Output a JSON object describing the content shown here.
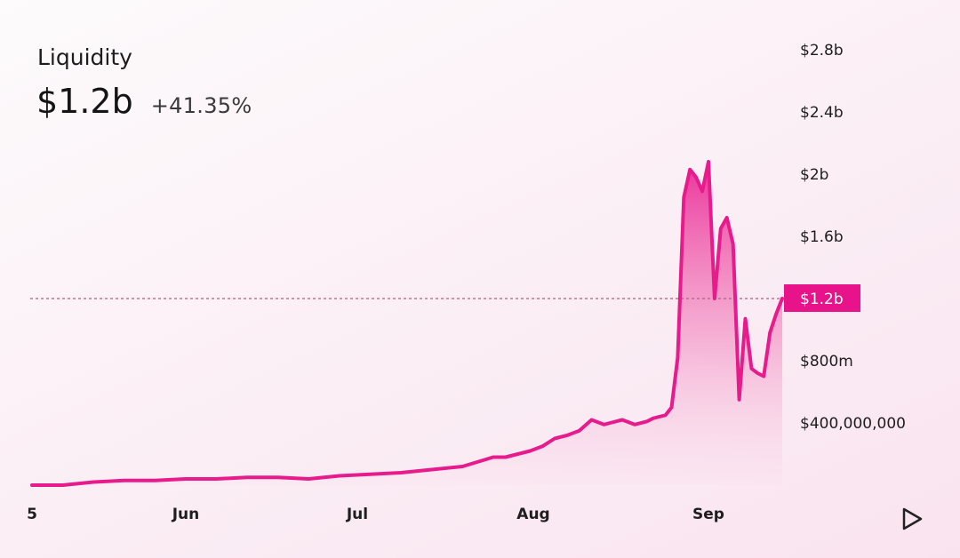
{
  "header": {
    "title": "Liquidity",
    "value": "$1.2b",
    "change": "+41.35%"
  },
  "colors": {
    "accent": "#e8128a",
    "line": "#e81b8c",
    "guide": "#b0607f",
    "text": "#1e1e1e"
  },
  "controls": {
    "play_icon": "play-icon"
  },
  "chart_data": {
    "type": "area",
    "title": "Liquidity",
    "xlabel": "",
    "ylabel": "",
    "ylim": [
      0,
      2.8
    ],
    "y_ticks": [
      {
        "value": 2.8,
        "label": "$2.8b"
      },
      {
        "value": 2.4,
        "label": "$2.4b"
      },
      {
        "value": 2.0,
        "label": "$2b"
      },
      {
        "value": 1.6,
        "label": "$1.6b"
      },
      {
        "value": 0.8,
        "label": "$800m"
      },
      {
        "value": 0.4,
        "label": "$400,000,000"
      }
    ],
    "x_ticks": [
      "5",
      "Jun",
      "Jul",
      "Aug",
      "Sep"
    ],
    "current": {
      "value": 1.2,
      "label": "$1.2b"
    },
    "grid": false,
    "series": [
      {
        "x": [
          "2023-05-15",
          "2023-05-20",
          "2023-05-25",
          "2023-05-30",
          "2023-06-04",
          "2023-06-09",
          "2023-06-14",
          "2023-06-19",
          "2023-06-24",
          "2023-06-29",
          "2023-07-04",
          "2023-07-09",
          "2023-07-14",
          "2023-07-19",
          "2023-07-24",
          "2023-07-29",
          "2023-07-31",
          "2023-08-02",
          "2023-08-04",
          "2023-08-06",
          "2023-08-08",
          "2023-08-10",
          "2023-08-12",
          "2023-08-14",
          "2023-08-16",
          "2023-08-17",
          "2023-08-19",
          "2023-08-21",
          "2023-08-23",
          "2023-08-24",
          "2023-08-25",
          "2023-08-26",
          "2023-08-27",
          "2023-08-28",
          "2023-08-29",
          "2023-08-30",
          "2023-08-31",
          "2023-09-01",
          "2023-09-02",
          "2023-09-03",
          "2023-09-04",
          "2023-09-05",
          "2023-09-06",
          "2023-09-07",
          "2023-09-08",
          "2023-09-09",
          "2023-09-10",
          "2023-09-11",
          "2023-09-12",
          "2023-09-13",
          "2023-09-14"
        ],
        "values": [
          0.0,
          0.0,
          0.02,
          0.03,
          0.03,
          0.04,
          0.04,
          0.05,
          0.05,
          0.04,
          0.06,
          0.07,
          0.08,
          0.1,
          0.12,
          0.18,
          0.18,
          0.2,
          0.22,
          0.25,
          0.3,
          0.32,
          0.35,
          0.42,
          0.39,
          0.4,
          0.42,
          0.39,
          0.41,
          0.43,
          0.44,
          0.45,
          0.5,
          0.82,
          1.85,
          2.03,
          1.98,
          1.89,
          2.08,
          1.2,
          1.65,
          1.72,
          1.55,
          0.55,
          1.07,
          0.75,
          0.72,
          0.7,
          0.98,
          1.1,
          1.2
        ]
      }
    ]
  }
}
